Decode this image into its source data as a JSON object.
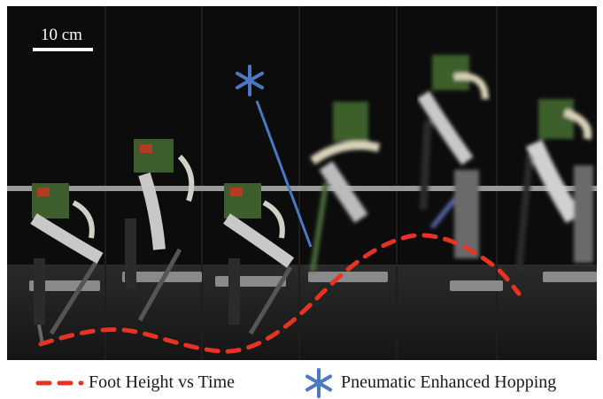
{
  "scale_bar": {
    "label": "10 cm"
  },
  "colors": {
    "trajectory": "#e63323",
    "marker": "#4a78c2"
  },
  "frames": [
    {
      "robot_height": 0.0,
      "motion_blur": false
    },
    {
      "robot_height": 0.05,
      "motion_blur": false
    },
    {
      "robot_height": 0.0,
      "motion_blur": false
    },
    {
      "robot_height": 0.3,
      "motion_blur": true
    },
    {
      "robot_height": 0.55,
      "motion_blur": true
    },
    {
      "robot_height": 0.35,
      "motion_blur": true
    }
  ],
  "legend": {
    "items": [
      {
        "icon": "dashed-line-icon",
        "label": "Foot Height vs Time"
      },
      {
        "icon": "asterisk-icon",
        "label": "Pneumatic Enhanced Hopping"
      }
    ]
  }
}
